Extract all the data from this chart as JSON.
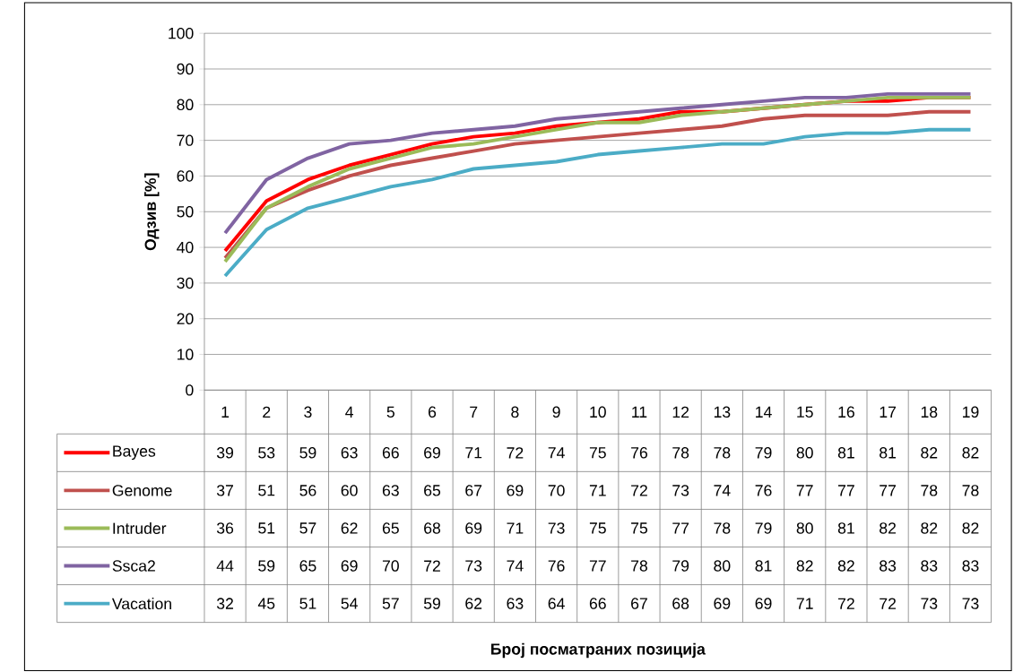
{
  "chart_data": {
    "type": "line",
    "annotations": [
      "Број посматраних  позиција"
    ],
    "ylabel": "Одзив [%]",
    "categories": [
      "1",
      "2",
      "3",
      "4",
      "5",
      "6",
      "7",
      "8",
      "9",
      "10",
      "11",
      "12",
      "13",
      "14",
      "15",
      "16",
      "17",
      "18",
      "19"
    ],
    "series": [
      {
        "name": "Bayes",
        "color": "#ff0000",
        "values": [
          39,
          53,
          59,
          63,
          66,
          69,
          71,
          72,
          74,
          75,
          76,
          78,
          78,
          79,
          80,
          81,
          81,
          82,
          82
        ]
      },
      {
        "name": "Genome",
        "color": "#c0504d",
        "values": [
          37,
          51,
          56,
          60,
          63,
          65,
          67,
          69,
          70,
          71,
          72,
          73,
          74,
          76,
          77,
          77,
          77,
          78,
          78
        ]
      },
      {
        "name": "Intruder",
        "color": "#9bbb59",
        "values": [
          36,
          51,
          57,
          62,
          65,
          68,
          69,
          71,
          73,
          75,
          75,
          77,
          78,
          79,
          80,
          81,
          82,
          82,
          82
        ]
      },
      {
        "name": "Ssca2",
        "color": "#8064a2",
        "values": [
          44,
          59,
          65,
          69,
          70,
          72,
          73,
          74,
          76,
          77,
          78,
          79,
          80,
          81,
          82,
          82,
          83,
          83,
          83
        ]
      },
      {
        "name": "Vacation",
        "color": "#4bacc6",
        "values": [
          32,
          45,
          51,
          54,
          57,
          59,
          62,
          63,
          64,
          66,
          67,
          68,
          69,
          69,
          71,
          72,
          72,
          73,
          73
        ]
      }
    ],
    "ylim": [
      0,
      100
    ],
    "yticks": [
      0,
      10,
      20,
      30,
      40,
      50,
      60,
      70,
      80,
      90,
      100
    ],
    "grid": "y",
    "legend": "bottom",
    "data_labels": true,
    "marker": "none",
    "line_style": "solid"
  }
}
